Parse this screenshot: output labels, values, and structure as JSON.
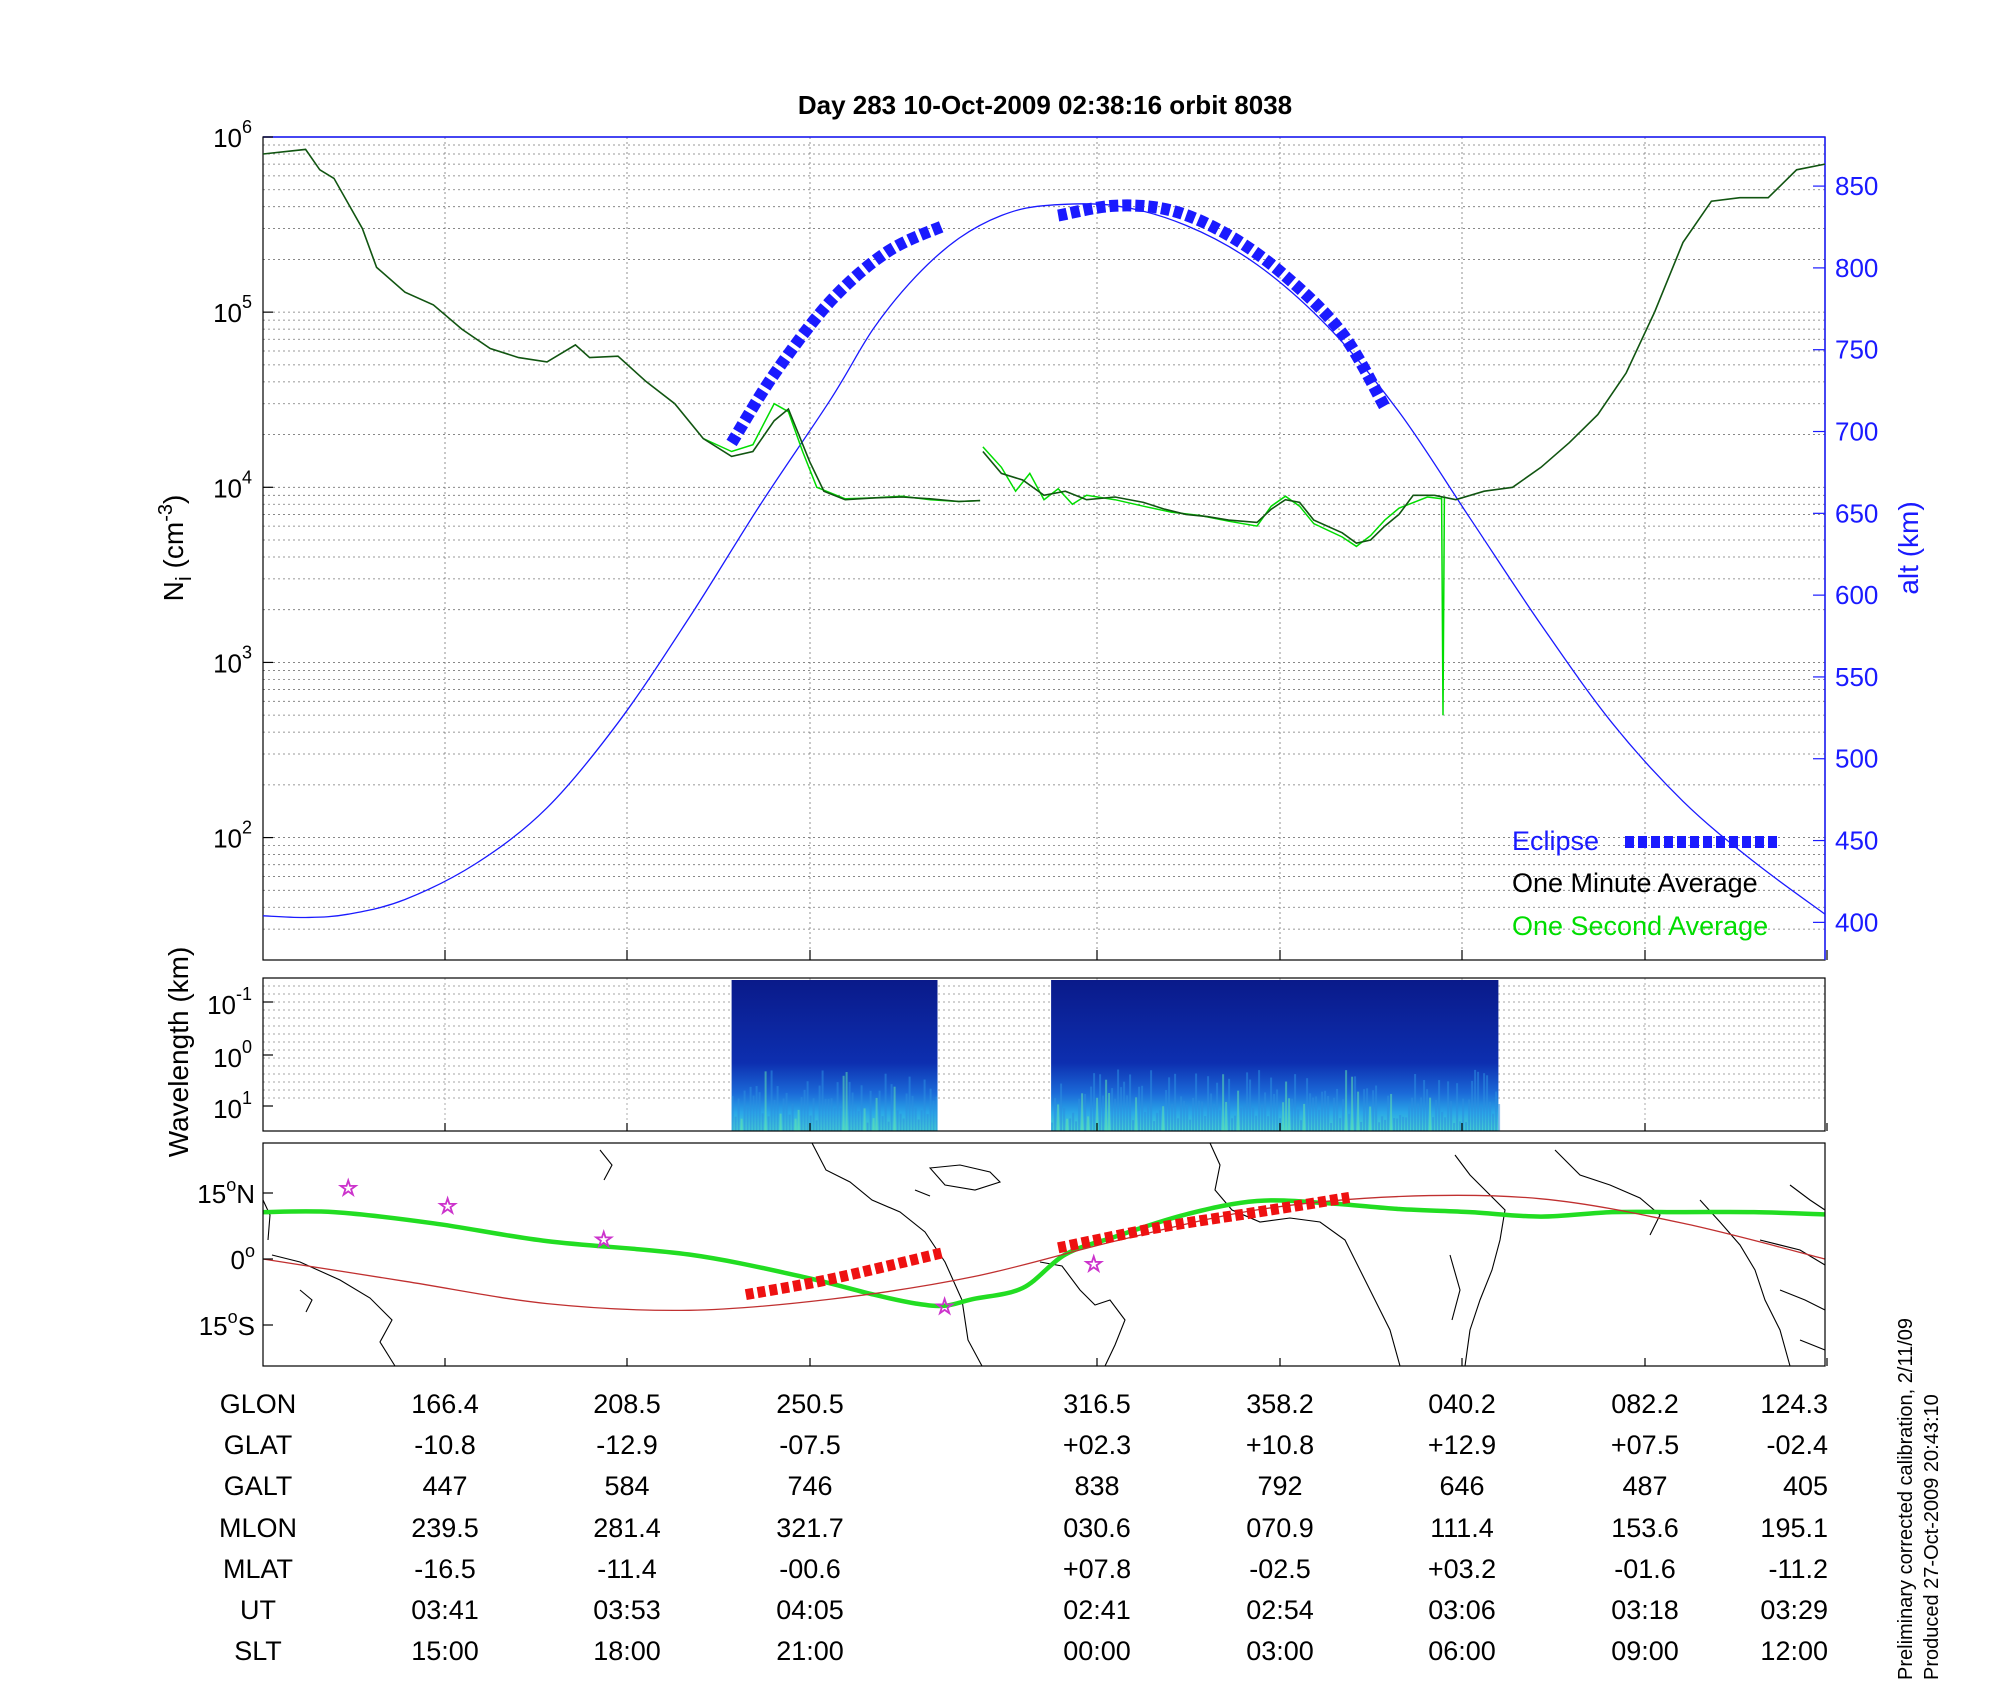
{
  "chart_data": [
    {
      "type": "line",
      "title": "Day 283  10-Oct-2009 02:38:16   orbit 8038",
      "ylabel_left": "N_i (cm^-3)",
      "ylabel_left_base": "N",
      "ylabel_left_sub": "i",
      "ylabel_left_unit": " (cm",
      "ylabel_left_exp": "-3",
      "ylabel_left_close": ")",
      "ylabel_right": "alt (km)",
      "yscale_left": "log",
      "ylim_left": [
        20,
        1000000
      ],
      "yticks_left": [
        {
          "base": "10",
          "exp": "2",
          "value": 100
        },
        {
          "base": "10",
          "exp": "3",
          "value": 1000
        },
        {
          "base": "10",
          "exp": "4",
          "value": 10000
        },
        {
          "base": "10",
          "exp": "5",
          "value": 100000
        },
        {
          "base": "10",
          "exp": "6",
          "value": 1000000
        }
      ],
      "ylim_right": [
        377,
        880
      ],
      "yticks_right": [
        "400",
        "450",
        "500",
        "550",
        "600",
        "650",
        "700",
        "750",
        "800",
        "850"
      ],
      "x_ticks": [
        "166.4",
        "208.5",
        "250.5",
        "316.5",
        "358.2",
        "040.2",
        "082.2",
        "124.3"
      ],
      "grid": true,
      "legend_position": "bottom-right",
      "legend": [
        {
          "label": "Eclipse",
          "color": "#1a1aff"
        },
        {
          "label": "One Minute Average",
          "color": "#000000"
        },
        {
          "label": "One Second Average",
          "color": "#00dd00"
        }
      ],
      "series": [
        {
          "name": "One Minute Average",
          "color": "#115511",
          "segments": [
            [
              [
                0.0,
                800000
              ],
              [
                0.03,
                850000
              ],
              [
                0.04,
                650000
              ],
              [
                0.05,
                580000
              ],
              [
                0.07,
                300000
              ],
              [
                0.08,
                180000
              ],
              [
                0.1,
                130000
              ],
              [
                0.12,
                110000
              ],
              [
                0.14,
                80000
              ],
              [
                0.16,
                62000
              ],
              [
                0.18,
                55000
              ],
              [
                0.2,
                52000
              ],
              [
                0.22,
                65000
              ],
              [
                0.23,
                55000
              ],
              [
                0.25,
                56000
              ],
              [
                0.27,
                40000
              ],
              [
                0.29,
                30000
              ],
              [
                0.31,
                19000
              ],
              [
                0.33,
                15000
              ],
              [
                0.345,
                16000
              ],
              [
                0.36,
                24000
              ],
              [
                0.37,
                28000
              ],
              [
                0.385,
                14000
              ],
              [
                0.395,
                9500
              ],
              [
                0.41,
                8500
              ],
              [
                0.43,
                8700
              ],
              [
                0.45,
                8800
              ],
              [
                0.47,
                8600
              ],
              [
                0.49,
                8300
              ],
              [
                0.505,
                8400
              ]
            ],
            [
              [
                0.507,
                16000
              ],
              [
                0.52,
                12000
              ],
              [
                0.535,
                11000
              ],
              [
                0.55,
                9000
              ],
              [
                0.565,
                9500
              ],
              [
                0.58,
                8500
              ],
              [
                0.6,
                8800
              ],
              [
                0.62,
                8200
              ],
              [
                0.635,
                7500
              ],
              [
                0.65,
                7000
              ],
              [
                0.665,
                6800
              ],
              [
                0.68,
                6500
              ],
              [
                0.7,
                6300
              ],
              [
                0.71,
                7500
              ],
              [
                0.72,
                8500
              ],
              [
                0.73,
                8200
              ],
              [
                0.74,
                6500
              ],
              [
                0.76,
                5500
              ],
              [
                0.77,
                4800
              ],
              [
                0.78,
                5000
              ],
              [
                0.79,
                6000
              ],
              [
                0.8,
                7000
              ],
              [
                0.81,
                9000
              ],
              [
                0.825,
                9000
              ],
              [
                0.84,
                8500
              ],
              [
                0.86,
                9500
              ],
              [
                0.88,
                10000
              ],
              [
                0.9,
                13000
              ],
              [
                0.92,
                18000
              ],
              [
                0.94,
                26000
              ],
              [
                0.96,
                45000
              ],
              [
                0.98,
                100000
              ],
              [
                1.0,
                250000
              ],
              [
                1.02,
                430000
              ],
              [
                1.04,
                450000
              ],
              [
                1.06,
                450000
              ],
              [
                1.08,
                650000
              ],
              [
                1.1,
                700000
              ]
            ]
          ]
        },
        {
          "name": "One Second Average",
          "color": "#00dd00",
          "segments": [
            [
              [
                0.31,
                19000
              ],
              [
                0.33,
                16000
              ],
              [
                0.345,
                17500
              ],
              [
                0.36,
                30000
              ],
              [
                0.37,
                27000
              ],
              [
                0.38,
                16000
              ],
              [
                0.39,
                10000
              ],
              [
                0.41,
                8600
              ],
              [
                0.43,
                8700
              ],
              [
                0.45,
                8900
              ],
              [
                0.47,
                8500
              ],
              [
                0.49,
                8300
              ],
              [
                0.505,
                8400
              ]
            ],
            [
              [
                0.507,
                17000
              ],
              [
                0.52,
                13000
              ],
              [
                0.53,
                9500
              ],
              [
                0.54,
                12000
              ],
              [
                0.55,
                8500
              ],
              [
                0.56,
                9800
              ],
              [
                0.57,
                8000
              ],
              [
                0.58,
                9000
              ],
              [
                0.6,
                8500
              ],
              [
                0.62,
                7800
              ],
              [
                0.64,
                7200
              ],
              [
                0.66,
                6900
              ],
              [
                0.68,
                6400
              ],
              [
                0.7,
                6000
              ],
              [
                0.71,
                7800
              ],
              [
                0.72,
                8900
              ],
              [
                0.73,
                7800
              ],
              [
                0.74,
                6200
              ],
              [
                0.76,
                5200
              ],
              [
                0.77,
                4600
              ],
              [
                0.78,
                5300
              ],
              [
                0.79,
                6500
              ],
              [
                0.8,
                7600
              ],
              [
                0.82,
                8800
              ],
              [
                0.83,
                8600
              ]
            ],
            [
              [
                0.83,
                8800
              ],
              [
                0.831,
                500
              ],
              [
                0.832,
                8900
              ]
            ]
          ]
        },
        {
          "name": "altitude",
          "axis": "right",
          "color": "#1a1aff",
          "x": [
            0.0,
            0.03,
            0.06,
            0.1,
            0.15,
            0.2,
            0.25,
            0.3,
            0.35,
            0.4,
            0.43,
            0.46,
            0.49,
            0.52,
            0.55,
            0.6,
            0.65,
            0.7,
            0.75,
            0.8,
            0.85,
            0.9,
            0.95,
            1.0,
            1.05,
            1.1
          ],
          "y": [
            404,
            403,
            405,
            414,
            436,
            470,
            522,
            586,
            655,
            720,
            763,
            795,
            818,
            832,
            838,
            838,
            826,
            802,
            764,
            712,
            647,
            582,
            522,
            474,
            437,
            405
          ]
        },
        {
          "name": "Eclipse",
          "color": "#1a1aff",
          "style": "thick-dashed",
          "axis": "right",
          "segments": [
            [
              [
                0.33,
                693
              ],
              [
                0.36,
                735
              ],
              [
                0.4,
                780
              ],
              [
                0.44,
                810
              ],
              [
                0.48,
                826
              ]
            ],
            [
              [
                0.56,
                832
              ],
              [
                0.6,
                838
              ],
              [
                0.64,
                835
              ],
              [
                0.68,
                820
              ],
              [
                0.72,
                795
              ],
              [
                0.76,
                760
              ],
              [
                0.79,
                715
              ]
            ]
          ]
        }
      ]
    },
    {
      "type": "heatmap",
      "ylabel": "Wavelength (km)",
      "yticks": [
        {
          "base": "10",
          "exp": "-1"
        },
        {
          "base": "10",
          "exp": "0"
        },
        {
          "base": "10",
          "exp": "1"
        }
      ],
      "blocks": [
        {
          "x_start": 0.33,
          "x_end": 0.475
        },
        {
          "x_start": 0.555,
          "x_end": 0.87
        }
      ]
    },
    {
      "type": "line",
      "subtype": "map",
      "yticks": [
        {
          "deg": "15",
          "hemi": "N"
        },
        {
          "deg": "0",
          "hemi": ""
        },
        {
          "deg": "15",
          "hemi": "S"
        }
      ],
      "ylim": [
        -25,
        25
      ],
      "series": [
        {
          "name": "ground track",
          "color": "#22dd22",
          "points": [
            [
              0.0,
              9.5
            ],
            [
              0.05,
              9.5
            ],
            [
              0.12,
              7
            ],
            [
              0.2,
              3
            ],
            [
              0.3,
              0
            ],
            [
              0.38,
              -5
            ],
            [
              0.43,
              -9
            ],
            [
              0.46,
              -11
            ],
            [
              0.48,
              -11.5
            ],
            [
              0.5,
              -10
            ],
            [
              0.535,
              -7.5
            ],
            [
              0.565,
              0
            ],
            [
              0.6,
              4
            ],
            [
              0.65,
              9
            ],
            [
              0.7,
              12
            ],
            [
              0.75,
              11.5
            ],
            [
              0.8,
              10.2
            ],
            [
              0.85,
              9.5
            ],
            [
              0.9,
              8.5
            ],
            [
              0.95,
              9.5
            ],
            [
              1.0,
              9.5
            ],
            [
              1.05,
              9.5
            ],
            [
              1.1,
              9
            ]
          ]
        },
        {
          "name": "magnetic equator",
          "color": "#c03030",
          "points": [
            [
              0.0,
              -1
            ],
            [
              0.1,
              -6
            ],
            [
              0.2,
              -11
            ],
            [
              0.3,
              -12.5
            ],
            [
              0.4,
              -10
            ],
            [
              0.5,
              -5
            ],
            [
              0.6,
              3
            ],
            [
              0.7,
              10
            ],
            [
              0.8,
              13
            ],
            [
              0.9,
              12.5
            ],
            [
              1.0,
              7
            ],
            [
              1.1,
              -1
            ]
          ]
        },
        {
          "name": "eclipse segment",
          "color": "#ee1111",
          "style": "thick-dashed",
          "segments": [
            [
              [
                0.34,
                -9
              ],
              [
                0.4,
                -5.5
              ],
              [
                0.48,
                0.5
              ]
            ],
            [
              [
                0.56,
                1.5
              ],
              [
                0.63,
                6
              ],
              [
                0.7,
                9.5
              ],
              [
                0.765,
                12.8
              ]
            ]
          ]
        },
        {
          "name": "stars",
          "color": "#cc33cc",
          "points": [
            [
              0.06,
              15
            ],
            [
              0.13,
              11
            ],
            [
              0.24,
              3.5
            ],
            [
              0.48,
              -11.5
            ],
            [
              0.585,
              -2
            ]
          ]
        }
      ]
    }
  ],
  "table": {
    "rows": [
      {
        "label": "GLON",
        "values": [
          "166.4",
          "208.5",
          "250.5",
          "316.5",
          "358.2",
          "040.2",
          "082.2",
          "124.3"
        ]
      },
      {
        "label": "GLAT",
        "values": [
          "-10.8",
          "-12.9",
          "-07.5",
          "+02.3",
          "+10.8",
          "+12.9",
          "+07.5",
          "-02.4"
        ]
      },
      {
        "label": "GALT",
        "values": [
          "447",
          "584",
          "746",
          "838",
          "792",
          "646",
          "487",
          "405"
        ]
      },
      {
        "label": "MLON",
        "values": [
          "239.5",
          "281.4",
          "321.7",
          "030.6",
          "070.9",
          "111.4",
          "153.6",
          "195.1"
        ]
      },
      {
        "label": "MLAT",
        "values": [
          "-16.5",
          "-11.4",
          "-00.6",
          "+07.8",
          "-02.5",
          "+03.2",
          "-01.6",
          "-11.2"
        ]
      },
      {
        "label": "UT",
        "values": [
          "03:41",
          "03:53",
          "04:05",
          "02:41",
          "02:54",
          "03:06",
          "03:18",
          "03:29"
        ]
      },
      {
        "label": "SLT",
        "values": [
          "15:00",
          "18:00",
          "21:00",
          "00:00",
          "03:00",
          "06:00",
          "09:00",
          "12:00"
        ]
      }
    ]
  },
  "footnote": {
    "line1": "Preliminary corrected calibration, 2/11/09",
    "line2": "Produced 27-Oct-2009 20:43:10"
  }
}
